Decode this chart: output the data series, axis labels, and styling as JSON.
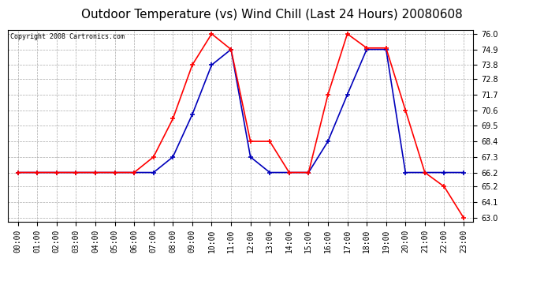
{
  "title": "Outdoor Temperature (vs) Wind Chill (Last 24 Hours) 20080608",
  "copyright": "Copyright 2008 Cartronics.com",
  "hours": [
    0,
    1,
    2,
    3,
    4,
    5,
    6,
    7,
    8,
    9,
    10,
    11,
    12,
    13,
    14,
    15,
    16,
    17,
    18,
    19,
    20,
    21,
    22,
    23
  ],
  "temp": [
    66.2,
    66.2,
    66.2,
    66.2,
    66.2,
    66.2,
    66.2,
    67.3,
    70.0,
    73.8,
    76.0,
    74.9,
    68.4,
    68.4,
    66.2,
    66.2,
    71.7,
    76.0,
    75.0,
    75.0,
    70.6,
    66.2,
    65.2,
    63.0
  ],
  "wind_chill": [
    66.2,
    66.2,
    66.2,
    66.2,
    66.2,
    66.2,
    66.2,
    66.2,
    67.3,
    70.3,
    73.8,
    74.9,
    67.3,
    66.2,
    66.2,
    66.2,
    68.4,
    71.7,
    74.9,
    74.9,
    66.2,
    66.2,
    66.2,
    66.2
  ],
  "temp_color": "#ff0000",
  "wind_chill_color": "#0000bb",
  "background_color": "#ffffff",
  "grid_color": "#aaaaaa",
  "ymin": 63.0,
  "ymax": 76.0,
  "yticks": [
    63.0,
    64.1,
    65.2,
    66.2,
    67.3,
    68.4,
    69.5,
    70.6,
    71.7,
    72.8,
    73.8,
    74.9,
    76.0
  ],
  "title_fontsize": 11,
  "copyright_fontsize": 6,
  "tick_fontsize": 7,
  "marker": "+",
  "marker_size": 4,
  "line_width": 1.2
}
